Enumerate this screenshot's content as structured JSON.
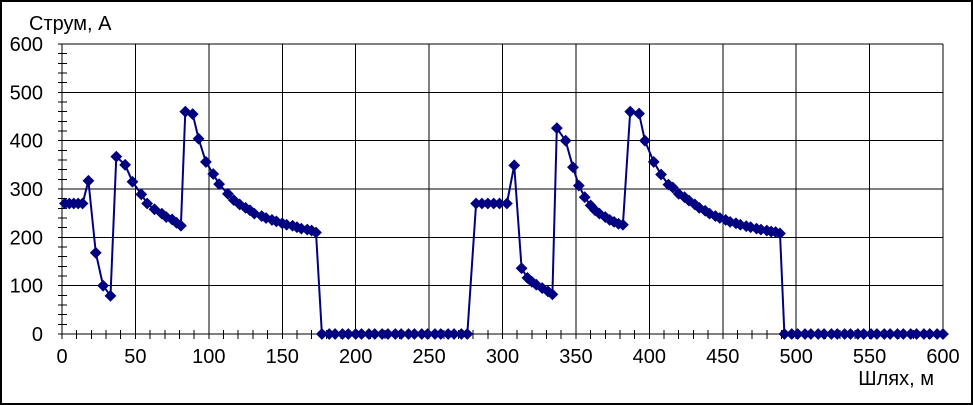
{
  "chart_data": {
    "type": "line",
    "title": "",
    "ylabel": "Струм, А",
    "xlabel": "Шлях, м",
    "xlim": [
      0,
      600
    ],
    "ylim": [
      0,
      600
    ],
    "x_ticks": [
      0,
      50,
      100,
      150,
      200,
      250,
      300,
      350,
      400,
      450,
      500,
      550,
      600
    ],
    "y_ticks": [
      0,
      100,
      200,
      300,
      400,
      500,
      600
    ],
    "x_minor_step": 10,
    "y_minor_step": 20,
    "grid": true,
    "legend": "none",
    "line_color": "#000080",
    "marker": "diamond",
    "marker_color": "#000080",
    "axis_color": "#000000",
    "background": "#ffffff",
    "points": [
      [
        2,
        270
      ],
      [
        5,
        270
      ],
      [
        8,
        270
      ],
      [
        11,
        270
      ],
      [
        14,
        270
      ],
      [
        18,
        317
      ],
      [
        23,
        168
      ],
      [
        28,
        100
      ],
      [
        33,
        79
      ],
      [
        37,
        367
      ],
      [
        43,
        350
      ],
      [
        48,
        315
      ],
      [
        54,
        289
      ],
      [
        58,
        270
      ],
      [
        63,
        258
      ],
      [
        68,
        249
      ],
      [
        71,
        242
      ],
      [
        75,
        237
      ],
      [
        78,
        230
      ],
      [
        81,
        224
      ],
      [
        84,
        460
      ],
      [
        89,
        455
      ],
      [
        93,
        404
      ],
      [
        98,
        356
      ],
      [
        103,
        331
      ],
      [
        107,
        310
      ],
      [
        113,
        290
      ],
      [
        117,
        277
      ],
      [
        121,
        268
      ],
      [
        125,
        261
      ],
      [
        128,
        256
      ],
      [
        131,
        249
      ],
      [
        136,
        244
      ],
      [
        139,
        240
      ],
      [
        143,
        236
      ],
      [
        146,
        233
      ],
      [
        150,
        229
      ],
      [
        153,
        226
      ],
      [
        157,
        224
      ],
      [
        160,
        221
      ],
      [
        163,
        218
      ],
      [
        167,
        216
      ],
      [
        170,
        214
      ],
      [
        173,
        210
      ],
      [
        177,
        0
      ],
      [
        182,
        0
      ],
      [
        186,
        0
      ],
      [
        191,
        0
      ],
      [
        195,
        0
      ],
      [
        200,
        0
      ],
      [
        204,
        0
      ],
      [
        209,
        0
      ],
      [
        213,
        0
      ],
      [
        218,
        0
      ],
      [
        222,
        0
      ],
      [
        227,
        0
      ],
      [
        231,
        0
      ],
      [
        236,
        0
      ],
      [
        240,
        0
      ],
      [
        245,
        0
      ],
      [
        249,
        0
      ],
      [
        254,
        0
      ],
      [
        258,
        0
      ],
      [
        263,
        0
      ],
      [
        267,
        0
      ],
      [
        272,
        0
      ],
      [
        276,
        0
      ],
      [
        282,
        270
      ],
      [
        286,
        270
      ],
      [
        290,
        270
      ],
      [
        294,
        270
      ],
      [
        298,
        270
      ],
      [
        303,
        270
      ],
      [
        308,
        349
      ],
      [
        313,
        136
      ],
      [
        317,
        116
      ],
      [
        320,
        108
      ],
      [
        323,
        102
      ],
      [
        327,
        95
      ],
      [
        331,
        88
      ],
      [
        334,
        82
      ],
      [
        337,
        426
      ],
      [
        343,
        400
      ],
      [
        348,
        345
      ],
      [
        352,
        307
      ],
      [
        356,
        283
      ],
      [
        360,
        266
      ],
      [
        363,
        256
      ],
      [
        366,
        249
      ],
      [
        370,
        242
      ],
      [
        373,
        236
      ],
      [
        376,
        232
      ],
      [
        379,
        228
      ],
      [
        382,
        226
      ],
      [
        387,
        460
      ],
      [
        393,
        456
      ],
      [
        397,
        400
      ],
      [
        403,
        356
      ],
      [
        408,
        330
      ],
      [
        413,
        309
      ],
      [
        416,
        303
      ],
      [
        420,
        290
      ],
      [
        424,
        283
      ],
      [
        427,
        276
      ],
      [
        431,
        268
      ],
      [
        434,
        261
      ],
      [
        438,
        255
      ],
      [
        441,
        249
      ],
      [
        445,
        244
      ],
      [
        448,
        240
      ],
      [
        452,
        236
      ],
      [
        455,
        232
      ],
      [
        459,
        229
      ],
      [
        462,
        226
      ],
      [
        466,
        223
      ],
      [
        469,
        221
      ],
      [
        473,
        218
      ],
      [
        476,
        216
      ],
      [
        480,
        214
      ],
      [
        483,
        212
      ],
      [
        486,
        211
      ],
      [
        489,
        208
      ],
      [
        492,
        0
      ],
      [
        497,
        0
      ],
      [
        501,
        0
      ],
      [
        506,
        0
      ],
      [
        510,
        0
      ],
      [
        515,
        0
      ],
      [
        519,
        0
      ],
      [
        524,
        0
      ],
      [
        528,
        0
      ],
      [
        533,
        0
      ],
      [
        537,
        0
      ],
      [
        542,
        0
      ],
      [
        546,
        0
      ],
      [
        551,
        0
      ],
      [
        555,
        0
      ],
      [
        560,
        0
      ],
      [
        564,
        0
      ],
      [
        569,
        0
      ],
      [
        573,
        0
      ],
      [
        578,
        0
      ],
      [
        582,
        0
      ],
      [
        587,
        0
      ],
      [
        591,
        0
      ],
      [
        596,
        0
      ],
      [
        600,
        0
      ]
    ]
  }
}
